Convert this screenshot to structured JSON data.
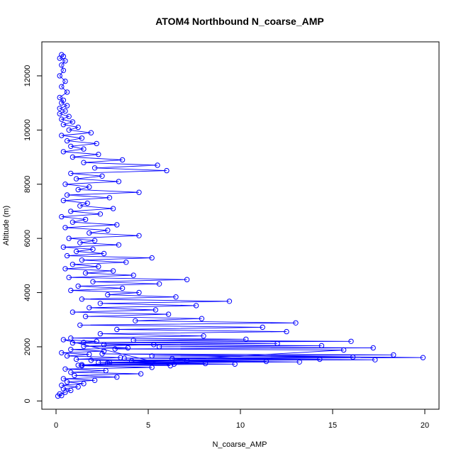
{
  "chart_data": {
    "type": "scatter",
    "title": "ATOM4 Northbound N_coarse_AMP",
    "xlabel": "N_coarse_AMP",
    "ylabel": "Altitude (m)",
    "xlim": [
      -0.77,
      20.77
    ],
    "ylim": [
      -305,
      13255
    ],
    "xticks": [
      0,
      5,
      10,
      15,
      20
    ],
    "yticks": [
      0,
      2000,
      4000,
      6000,
      8000,
      10000,
      12000
    ],
    "grid": false,
    "legend": "none",
    "plot_style": "points connected by lines (type b)",
    "color": "#0000ff",
    "series": [
      {
        "x": [
          0.1,
          0.3,
          0.2,
          0.5,
          0.8,
          0.4,
          1.2,
          0.3,
          1.5,
          0.6,
          2.1,
          0.4,
          3.3,
          1.0,
          4.6,
          0.8,
          2.7,
          0.5,
          5.2,
          1.4,
          6.4,
          2.3,
          7.1,
          1.1,
          3.5,
          0.6,
          1.8,
          0.3,
          2.6,
          0.8,
          3.9,
          1.5,
          5.3,
          0.9,
          2.2,
          0.4,
          6.2,
          1.4,
          8.1,
          2.9,
          11.4,
          1.9,
          14.3,
          3.7,
          16.1,
          5.2,
          18.3,
          2.5,
          19.9,
          6.3,
          17.3,
          4.1,
          13.2,
          2.8,
          9.7,
          1.2,
          15.6,
          3.2,
          17.2,
          5.6,
          14.4,
          2.6,
          12.0,
          1.5,
          16.0,
          4.2,
          10.3,
          0.8,
          8.0,
          2.4,
          12.5,
          3.3,
          11.2,
          1.3,
          13.0,
          4.3,
          7.9,
          1.6,
          6.1,
          0.9,
          5.4,
          1.8,
          7.6,
          2.4,
          9.4,
          1.4,
          6.5,
          2.8,
          4.5,
          0.8,
          3.6,
          1.2,
          5.6,
          2.0,
          7.1,
          0.7,
          4.2,
          1.6,
          3.1,
          0.5,
          2.3,
          0.9,
          3.8,
          1.4,
          5.2,
          0.6,
          2.6,
          1.1,
          2.0,
          0.4,
          3.4,
          1.3,
          2.1,
          0.7,
          4.5,
          1.8,
          2.8,
          0.5,
          3.3,
          0.9,
          1.6,
          0.3,
          2.4,
          0.8,
          3.1,
          1.3,
          1.7,
          0.4,
          2.9,
          0.6,
          4.5,
          1.2,
          1.8,
          0.5,
          3.4,
          1.1,
          2.5,
          0.8,
          6.0,
          2.1,
          5.5,
          1.5,
          3.6,
          0.9,
          2.3,
          0.4,
          1.5,
          0.8,
          2.2,
          0.6,
          1.4,
          0.3,
          1.9,
          0.7,
          1.2,
          0.4,
          0.9,
          0.3,
          0.7,
          0.2,
          0.5,
          0.2,
          0.6,
          0.3,
          0.4,
          0.2,
          0.6,
          0.3,
          0.5,
          0.2,
          0.4,
          0.3,
          0.5,
          0.2,
          0.4,
          0.3
        ],
        "y": [
          180,
          200,
          260,
          320,
          390,
          450,
          520,
          580,
          640,
          700,
          760,
          820,
          880,
          940,
          1000,
          1060,
          1120,
          1180,
          1240,
          1300,
          1360,
          1420,
          1480,
          1540,
          1600,
          1660,
          1720,
          1780,
          1840,
          1900,
          1960,
          2020,
          2080,
          2140,
          2200,
          2260,
          1300,
          1340,
          1380,
          1420,
          1460,
          1500,
          1540,
          1580,
          1620,
          1660,
          1700,
          1740,
          1600,
          1560,
          1520,
          1480,
          1440,
          1400,
          1360,
          1320,
          1880,
          1920,
          1960,
          2000,
          2040,
          2080,
          2120,
          2160,
          2200,
          2240,
          2280,
          2320,
          2400,
          2480,
          2560,
          2640,
          2720,
          2800,
          2880,
          2960,
          3040,
          3120,
          3200,
          3280,
          3360,
          3440,
          3520,
          3600,
          3680,
          3760,
          3840,
          3920,
          4000,
          4080,
          4160,
          4240,
          4320,
          4400,
          4480,
          4560,
          4640,
          4720,
          4800,
          4880,
          4960,
          5040,
          5120,
          5200,
          5280,
          5360,
          5440,
          5520,
          5600,
          5680,
          5760,
          5840,
          5920,
          6000,
          6100,
          6200,
          6300,
          6400,
          6500,
          6600,
          6700,
          6800,
          6900,
          7000,
          7100,
          7200,
          7300,
          7400,
          7500,
          7600,
          7700,
          7800,
          7900,
          8000,
          8100,
          8200,
          8300,
          8400,
          8500,
          8600,
          8700,
          8800,
          8900,
          9000,
          9100,
          9200,
          9300,
          9400,
          9500,
          9600,
          9700,
          9800,
          9900,
          10000,
          10100,
          10200,
          10300,
          10400,
          10500,
          10600,
          10700,
          10800,
          10900,
          11000,
          11100,
          11200,
          11400,
          11600,
          11800,
          12000,
          12200,
          12400,
          12550,
          12650,
          12720,
          12780
        ]
      }
    ]
  }
}
